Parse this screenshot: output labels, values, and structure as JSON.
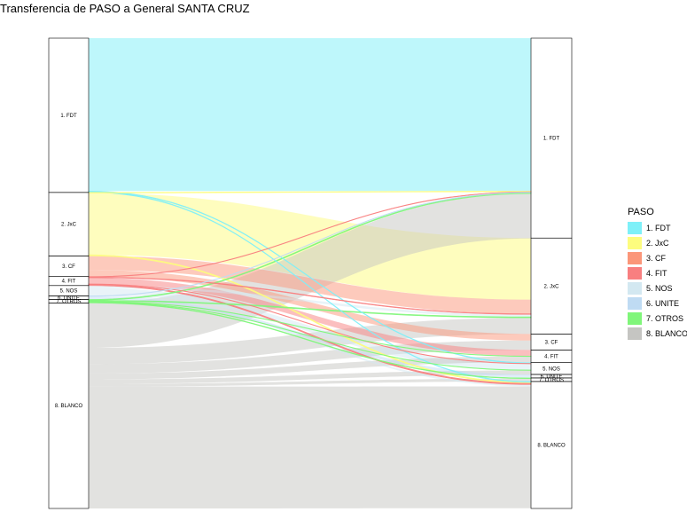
{
  "title": "Transferencia de PASO a General SANTA CRUZ",
  "chart_data": {
    "type": "alluvial",
    "legend": {
      "title": "PASO",
      "entries": [
        {
          "label": "1. FDT",
          "color": "#7EF0F8"
        },
        {
          "label": "2. JxC",
          "color": "#FDFC7E"
        },
        {
          "label": "3. CF",
          "color": "#FB9679"
        },
        {
          "label": "4. FIT",
          "color": "#F87F80"
        },
        {
          "label": "5. NOS",
          "color": "#D3E8F1"
        },
        {
          "label": "6. UNITE",
          "color": "#BFDBF3"
        },
        {
          "label": "7. OTROS",
          "color": "#80F67A"
        },
        {
          "label": "8. BLANCO",
          "color": "#C5C5C2"
        }
      ]
    },
    "left_axis_labels": [
      "1. FDT",
      "2. JxC",
      "3. CF",
      "4. FIT",
      "5. NOS",
      "6. UNITE",
      "7. OTROS",
      "8. BLANCO"
    ],
    "right_axis_labels": [
      "1. FDT",
      "2. JxC",
      "3. CF",
      "4. FIT",
      "5. NOS",
      "6. UNITE",
      "7. OTROS",
      "8. BLANCO"
    ],
    "left_shares": [
      0.328,
      0.135,
      0.044,
      0.019,
      0.022,
      0.0075,
      0.0075,
      0.437
    ],
    "right_shares": [
      0.425,
      0.204,
      0.034,
      0.027,
      0.025,
      0.0075,
      0.0075,
      0.27
    ],
    "flows": [
      {
        "from": 0,
        "to": 0,
        "value": 0.325
      },
      {
        "from": 0,
        "to": 4,
        "value": 0.0015
      },
      {
        "from": 0,
        "to": 7,
        "value": 0.0015
      },
      {
        "from": 1,
        "to": 0,
        "value": 0.0015
      },
      {
        "from": 1,
        "to": 1,
        "value": 0.131
      },
      {
        "from": 1,
        "to": 7,
        "value": 0.0025
      },
      {
        "from": 2,
        "to": 1,
        "value": 0.03
      },
      {
        "from": 2,
        "to": 2,
        "value": 0.014
      },
      {
        "from": 3,
        "to": 0,
        "value": 0.001
      },
      {
        "from": 3,
        "to": 1,
        "value": 0.0015
      },
      {
        "from": 3,
        "to": 3,
        "value": 0.013
      },
      {
        "from": 3,
        "to": 4,
        "value": 0.001
      },
      {
        "from": 3,
        "to": 7,
        "value": 0.0025
      },
      {
        "from": 4,
        "to": 1,
        "value": 0.005
      },
      {
        "from": 4,
        "to": 4,
        "value": 0.013
      },
      {
        "from": 4,
        "to": 7,
        "value": 0.004
      },
      {
        "from": 5,
        "to": 0,
        "value": 0.001
      },
      {
        "from": 5,
        "to": 5,
        "value": 0.0065
      },
      {
        "from": 6,
        "to": 0,
        "value": 0.002
      },
      {
        "from": 6,
        "to": 1,
        "value": 0.002
      },
      {
        "from": 6,
        "to": 3,
        "value": 0.001
      },
      {
        "from": 6,
        "to": 4,
        "value": 0.001
      },
      {
        "from": 6,
        "to": 6,
        "value": 0.0015
      },
      {
        "from": 7,
        "to": 0,
        "value": 0.0955
      },
      {
        "from": 7,
        "to": 1,
        "value": 0.0345
      },
      {
        "from": 7,
        "to": 2,
        "value": 0.02
      },
      {
        "from": 7,
        "to": 3,
        "value": 0.0125
      },
      {
        "from": 7,
        "to": 4,
        "value": 0.0095
      },
      {
        "from": 7,
        "to": 6,
        "value": 0.006
      },
      {
        "from": 7,
        "to": 7,
        "value": 0.259
      }
    ]
  }
}
